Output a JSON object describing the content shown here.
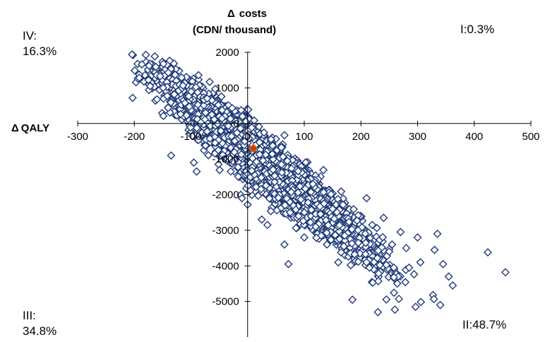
{
  "chart_data": {
    "type": "scatter",
    "x_axis": {
      "label": "QALY",
      "label_prefix": "Δ",
      "range": [
        -300,
        500
      ],
      "ticks": [
        -300,
        -200,
        -100,
        0,
        100,
        200,
        300,
        400,
        500
      ]
    },
    "y_axis": {
      "label_line1": "costs",
      "label_prefix": "Δ",
      "label_line2": "(CDN/ thousand)",
      "range": [
        -6000,
        2000
      ],
      "ticks": [
        2000,
        1000,
        0,
        -1000,
        -2000,
        -3000,
        -4000,
        -5000
      ]
    },
    "grid": false,
    "legend": "none",
    "series": [
      {
        "marker": "open-diamond",
        "color": "#1f3a7a",
        "cloud": {
          "center": [
            35,
            -1200
          ],
          "major_axis_slope_per_qaly": -12.8,
          "spread_major_sd": 82,
          "spread_minor_sd": 350,
          "x_extent": [
            -210,
            460
          ],
          "approx_points": 5000
        },
        "points": [
          [
            -203,
            720
          ],
          [
            -175,
            1220
          ],
          [
            -172,
            1050
          ],
          [
            -140,
            1430
          ],
          [
            -128,
            1370
          ],
          [
            -135,
            -900
          ],
          [
            -95,
            -1100
          ],
          [
            -90,
            -1350
          ],
          [
            -10,
            -2100
          ],
          [
            0,
            -2280
          ],
          [
            5,
            -1880
          ],
          [
            25,
            -2700
          ],
          [
            35,
            -2850
          ],
          [
            65,
            -3400
          ],
          [
            72,
            -3950
          ],
          [
            75,
            -2500
          ],
          [
            130,
            -3150
          ],
          [
            140,
            -3400
          ],
          [
            160,
            -3900
          ],
          [
            170,
            -3450
          ],
          [
            182,
            -3980
          ],
          [
            185,
            -4950
          ],
          [
            210,
            -3900
          ],
          [
            215,
            -4050
          ],
          [
            230,
            -5300
          ],
          [
            250,
            -3600
          ],
          [
            255,
            -3400
          ],
          [
            258,
            -4050
          ],
          [
            260,
            -5230
          ],
          [
            270,
            -3050
          ],
          [
            280,
            -3500
          ],
          [
            285,
            -4050
          ],
          [
            300,
            -3200
          ],
          [
            305,
            -3900
          ],
          [
            330,
            -3550
          ],
          [
            335,
            -3100
          ],
          [
            340,
            -5100
          ],
          [
            345,
            -3950
          ],
          [
            355,
            -4300
          ],
          [
            362,
            -4550
          ],
          [
            424,
            -3620
          ],
          [
            455,
            -4180
          ],
          [
            210,
            -2100
          ],
          [
            220,
            -2850
          ],
          [
            240,
            -2650
          ],
          [
            195,
            -3000
          ],
          [
            150,
            -2400
          ],
          [
            120,
            -2900
          ],
          [
            100,
            -3200
          ],
          [
            90,
            -2600
          ]
        ]
      }
    ],
    "base_case": {
      "x": 10,
      "y": -700,
      "marker": "filled-diamond",
      "color": "#e03010",
      "edge": "#c8a000"
    },
    "quadrant_labels": {
      "I": "I:0.3%",
      "II": "II:48.7%",
      "III_line1": "III:",
      "III_line2": "34.8%",
      "IV_line1": "IV:",
      "IV_line2": "16.3%"
    }
  }
}
